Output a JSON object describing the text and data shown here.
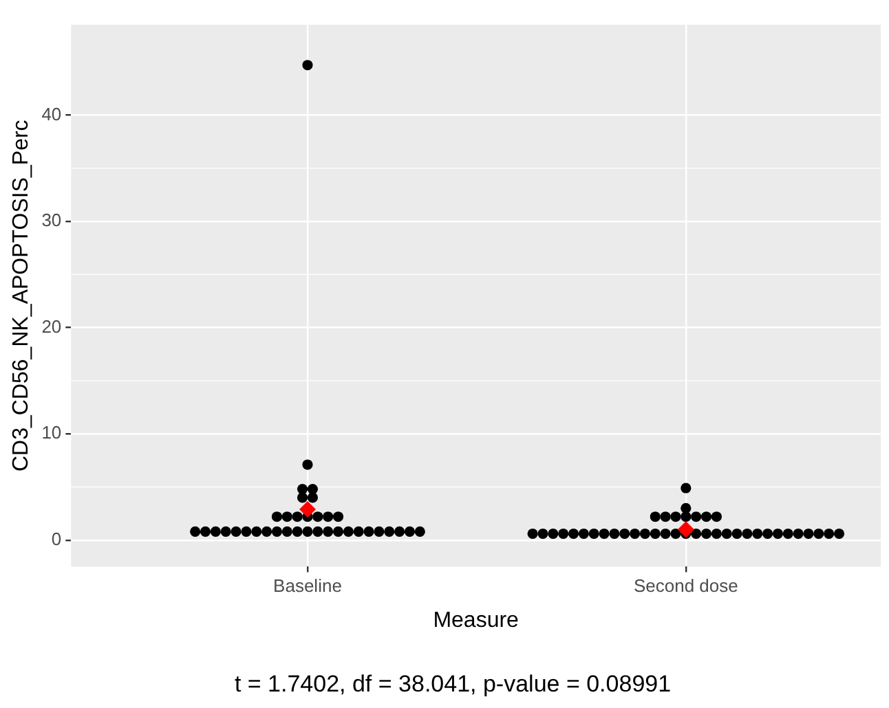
{
  "chart_data": {
    "type": "scatter",
    "categories": [
      "Baseline",
      "Second dose"
    ],
    "xlabel": "Measure",
    "ylabel": "CD3_CD56_NK_APOPTOSIS_Perc",
    "annotations": [
      "t = 1.7402, df = 38.041, p-value = 0.08991"
    ],
    "ylim": [
      -2.5,
      48.5
    ],
    "yticks": [
      0,
      10,
      20,
      30,
      40
    ],
    "grid": true,
    "marker": "circle",
    "series": [
      {
        "color": "#000000",
        "x": [
          "Baseline",
          "Baseline",
          "Baseline",
          "Baseline",
          "Baseline",
          "Baseline",
          "Baseline",
          "Baseline",
          "Baseline",
          "Baseline",
          "Baseline",
          "Baseline",
          "Baseline",
          "Baseline",
          "Baseline",
          "Baseline",
          "Baseline",
          "Baseline",
          "Baseline",
          "Baseline",
          "Baseline",
          "Baseline",
          "Baseline",
          "Baseline",
          "Baseline",
          "Baseline",
          "Baseline",
          "Baseline",
          "Baseline",
          "Baseline",
          "Baseline",
          "Baseline",
          "Baseline",
          "Baseline",
          "Baseline",
          "Baseline",
          "Second dose",
          "Second dose",
          "Second dose",
          "Second dose",
          "Second dose",
          "Second dose",
          "Second dose",
          "Second dose",
          "Second dose",
          "Second dose",
          "Second dose",
          "Second dose",
          "Second dose",
          "Second dose",
          "Second dose",
          "Second dose",
          "Second dose",
          "Second dose",
          "Second dose",
          "Second dose",
          "Second dose",
          "Second dose",
          "Second dose",
          "Second dose",
          "Second dose",
          "Second dose",
          "Second dose",
          "Second dose",
          "Second dose",
          "Second dose",
          "Second dose",
          "Second dose",
          "Second dose",
          "Second dose",
          "Second dose",
          "Second dose",
          "Second dose",
          "Second dose",
          "Second dose",
          "Second dose"
        ],
        "values": [
          0.8,
          0.8,
          0.8,
          0.8,
          0.8,
          0.8,
          0.8,
          0.8,
          0.8,
          0.8,
          0.8,
          0.8,
          0.8,
          0.8,
          0.8,
          0.8,
          0.8,
          0.8,
          0.8,
          0.8,
          0.8,
          0.8,
          0.8,
          2.2,
          2.2,
          2.2,
          2.2,
          2.2,
          2.2,
          2.2,
          4.0,
          4.0,
          4.8,
          4.8,
          7.1,
          44.7,
          0.6,
          0.6,
          0.6,
          0.6,
          0.6,
          0.6,
          0.6,
          0.6,
          0.6,
          0.6,
          0.6,
          0.6,
          0.6,
          0.6,
          0.6,
          0.6,
          0.6,
          0.6,
          0.6,
          0.6,
          0.6,
          0.6,
          0.6,
          0.6,
          0.6,
          0.6,
          0.6,
          0.6,
          0.6,
          0.6,
          0.6,
          2.2,
          2.2,
          2.2,
          2.2,
          2.2,
          2.2,
          2.2,
          3.0,
          4.9
        ]
      },
      {
        "color": "#ff0000",
        "marker": "diamond",
        "x": [
          "Baseline",
          "Second dose"
        ],
        "values": [
          2.9,
          1.0
        ]
      }
    ]
  }
}
